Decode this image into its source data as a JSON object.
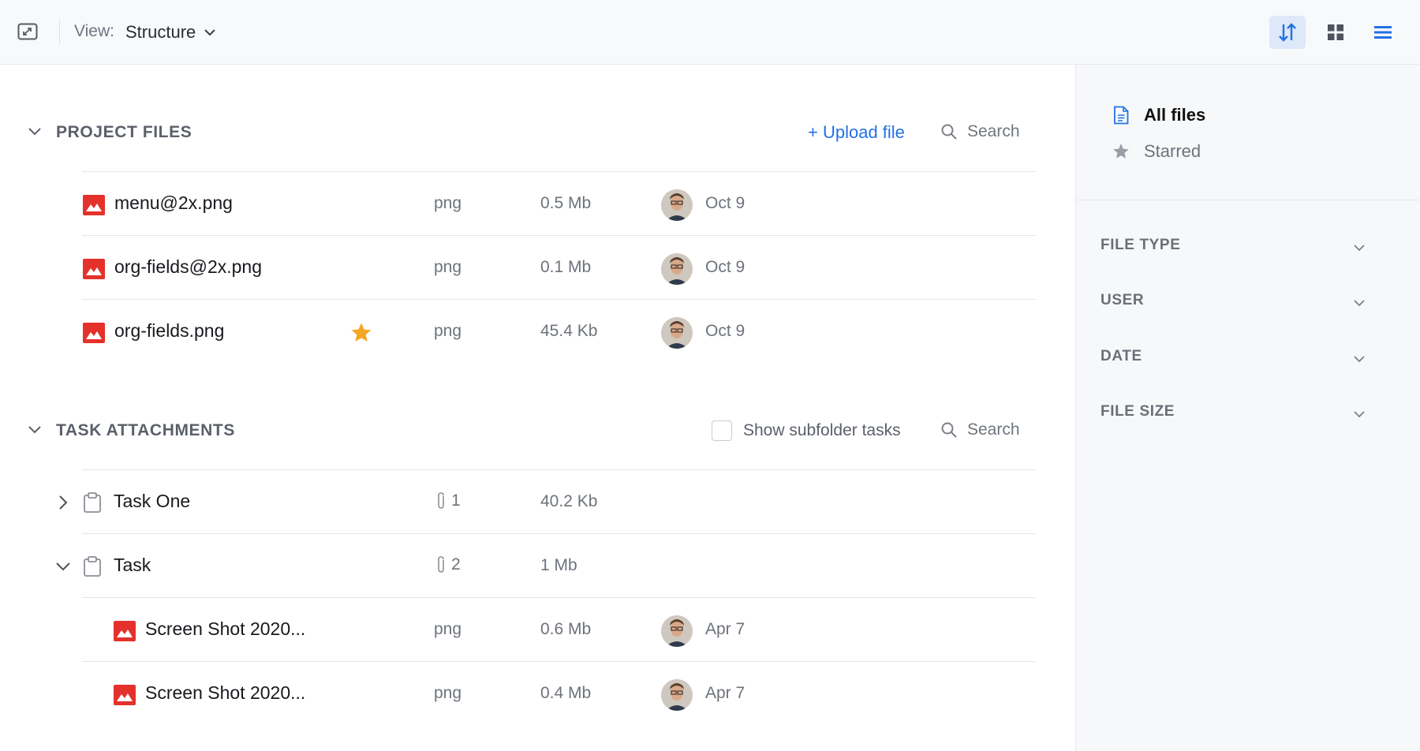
{
  "toolbar": {
    "view_label": "View:",
    "view_value": "Structure"
  },
  "project_files": {
    "title": "PROJECT FILES",
    "upload_label": "+ Upload file",
    "search_label": "Search",
    "files": [
      {
        "name": "menu@2x.png",
        "type": "png",
        "size": "0.5 Mb",
        "date": "Oct 9",
        "starred": false
      },
      {
        "name": "org-fields@2x.png",
        "type": "png",
        "size": "0.1 Mb",
        "date": "Oct 9",
        "starred": false
      },
      {
        "name": "org-fields.png",
        "type": "png",
        "size": "45.4 Kb",
        "date": "Oct 9",
        "starred": true
      }
    ]
  },
  "task_attachments": {
    "title": "TASK ATTACHMENTS",
    "subfolder_label": "Show subfolder tasks",
    "search_label": "Search",
    "tasks": [
      {
        "name": "Task One",
        "attachments": "1",
        "size": "40.2 Kb",
        "expanded": false
      },
      {
        "name": "Task",
        "attachments": "2",
        "size": "1 Mb",
        "expanded": true
      }
    ],
    "task_files": [
      {
        "name": "Screen Shot 2020...",
        "type": "png",
        "size": "0.6 Mb",
        "date": "Apr 7"
      },
      {
        "name": "Screen Shot 2020...",
        "type": "png",
        "size": "0.4 Mb",
        "date": "Apr 7"
      }
    ]
  },
  "sidebar": {
    "nav": [
      {
        "label": "All files",
        "icon": "document-icon",
        "active": true
      },
      {
        "label": "Starred",
        "icon": "star-icon",
        "active": false
      }
    ],
    "filters": [
      {
        "label": "FILE TYPE"
      },
      {
        "label": "USER"
      },
      {
        "label": "DATE"
      },
      {
        "label": "FILE SIZE"
      }
    ]
  },
  "colors": {
    "accent": "#2271e3",
    "file_icon": "#e5312b",
    "star": "#f5a623"
  }
}
